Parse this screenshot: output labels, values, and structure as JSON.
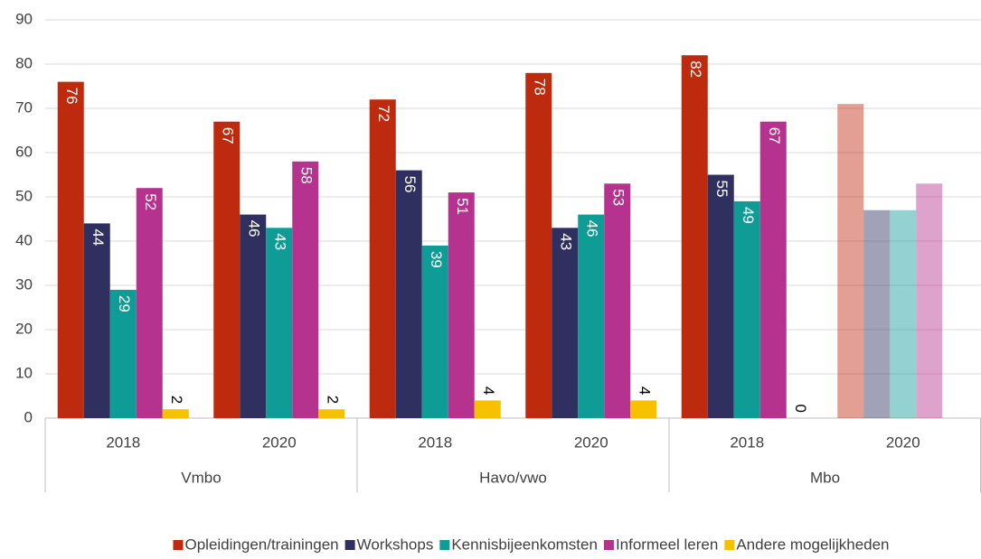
{
  "chart_data": {
    "type": "bar",
    "category_groups": [
      {
        "name": "Vmbo",
        "categories": [
          "2018",
          "2020"
        ]
      },
      {
        "name": "Havo/vwo",
        "categories": [
          "2018",
          "2020"
        ]
      },
      {
        "name": "Mbo",
        "categories": [
          "2018",
          "2020"
        ]
      }
    ],
    "series": [
      {
        "name": "Opleidingen/trainingen",
        "color": "#be2a0e",
        "values": [
          76,
          67,
          72,
          78,
          82,
          71
        ]
      },
      {
        "name": "Workshops",
        "color": "#2f305f",
        "values": [
          44,
          46,
          56,
          43,
          55,
          47
        ]
      },
      {
        "name": "Kennisbijeenkomsten",
        "color": "#0f9c97",
        "values": [
          29,
          43,
          39,
          46,
          49,
          47
        ]
      },
      {
        "name": "Informeel leren",
        "color": "#b5338f",
        "values": [
          52,
          58,
          51,
          53,
          67,
          53
        ]
      },
      {
        "name": "Andere mogelijkheden",
        "color": "#f8c100",
        "values": [
          2,
          2,
          4,
          4,
          0,
          null
        ]
      }
    ],
    "faded_categories": [
      5
    ],
    "ylim": [
      0,
      90
    ],
    "yticks": [
      0,
      10,
      20,
      30,
      40,
      50,
      60,
      70,
      80,
      90
    ],
    "grid": true,
    "legend": "bottom"
  }
}
